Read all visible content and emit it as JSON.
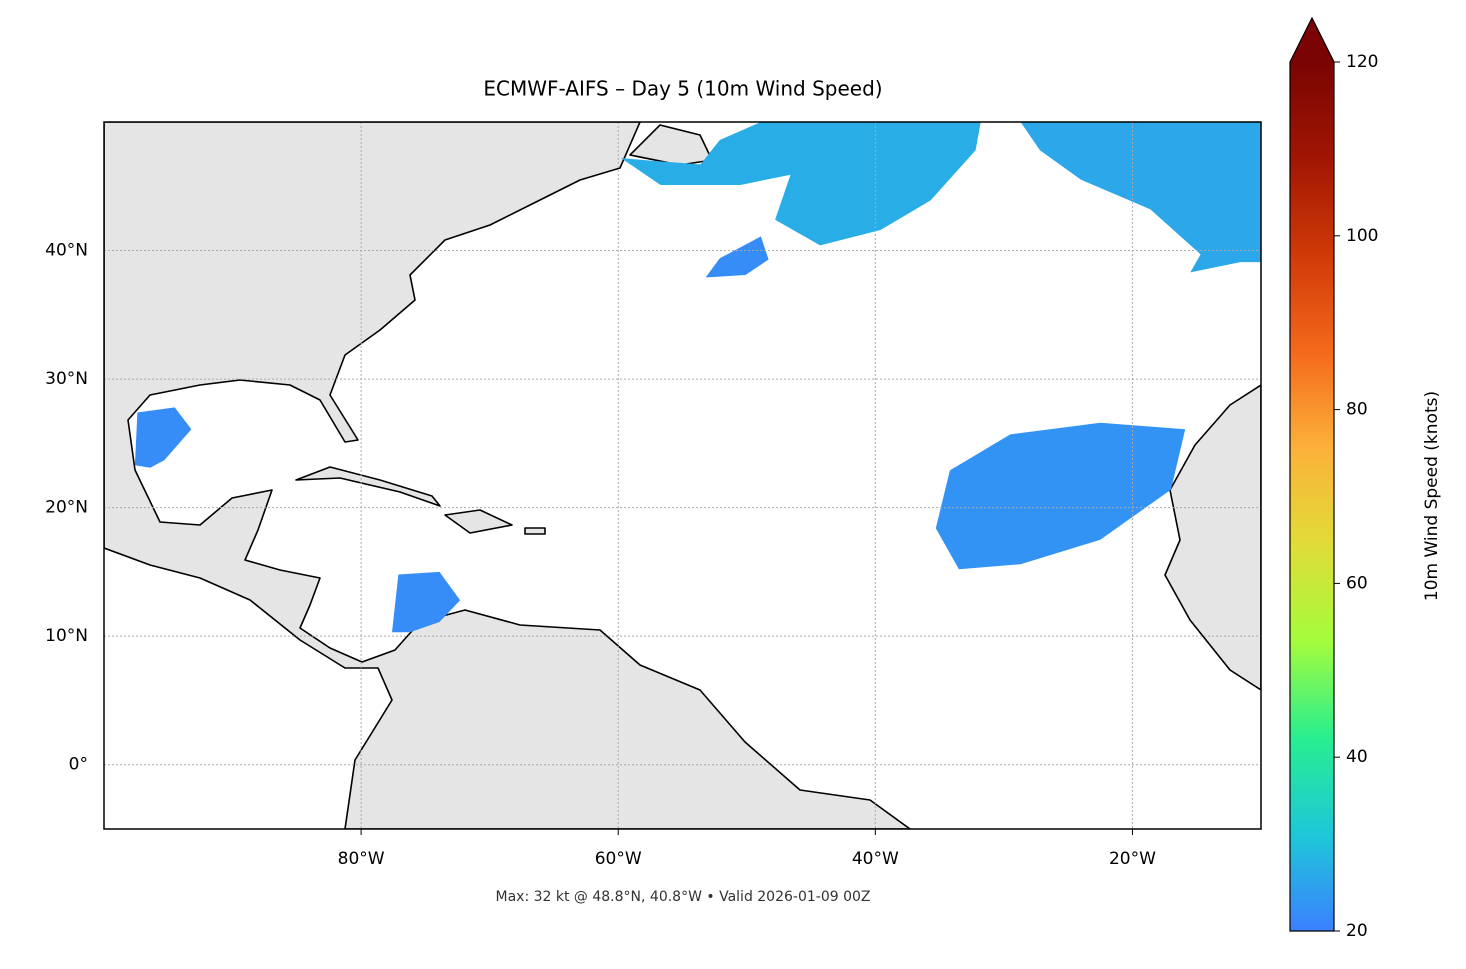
{
  "chart_data": {
    "type": "map",
    "title": "ECMWF-AIFS – Day 5 (10m Wind Speed)",
    "footer": "Max: 32 kt @ 48.8°N, 40.8°W • Valid 2026-01-09 00Z",
    "xlim": [
      -100,
      -10
    ],
    "ylim": [
      -5,
      50
    ],
    "xticks": [
      {
        "value": -80,
        "label": "80°W"
      },
      {
        "value": -60,
        "label": "60°W"
      },
      {
        "value": -40,
        "label": "40°W"
      },
      {
        "value": -20,
        "label": "20°W"
      }
    ],
    "yticks": [
      {
        "value": 0,
        "label": "0°"
      },
      {
        "value": 10,
        "label": "10°N"
      },
      {
        "value": 20,
        "label": "20°N"
      },
      {
        "value": 30,
        "label": "30°N"
      },
      {
        "value": 40,
        "label": "40°N"
      }
    ],
    "grid": true,
    "colorbar": {
      "label": "10m Wind Speed (knots)",
      "lim": [
        20,
        120
      ],
      "ticks": [
        20,
        40,
        60,
        80,
        100,
        120
      ],
      "extend": "max",
      "colors": [
        "#3b80ff",
        "#1ec8d8",
        "#28ee90",
        "#a4fc3c",
        "#e0dc37",
        "#fcb13a",
        "#f4691b",
        "#d03a08",
        "#a11603",
        "#7a0403"
      ]
    },
    "wind_areas": [
      {
        "value": 27,
        "polygon": [
          [
            -59.8,
            47.2
          ],
          [
            -56.7,
            45.1
          ],
          [
            -50.5,
            45.1
          ],
          [
            -46.6,
            45.9
          ],
          [
            -47.8,
            42.4
          ],
          [
            -44.3,
            40.4
          ],
          [
            -39.6,
            41.6
          ],
          [
            -35.7,
            43.9
          ],
          [
            -32.2,
            47.8
          ],
          [
            -31.8,
            50
          ],
          [
            -48.9,
            50
          ],
          [
            -52.1,
            48.6
          ],
          [
            -53.6,
            46.7
          ],
          [
            -57.5,
            47.0
          ]
        ]
      },
      {
        "value": 26,
        "polygon": [
          [
            -28.7,
            50
          ],
          [
            -10,
            50
          ],
          [
            -10,
            39.1
          ],
          [
            -11.6,
            39.1
          ],
          [
            -15.5,
            38.3
          ],
          [
            -14.7,
            39.7
          ],
          [
            -18.6,
            43.2
          ],
          [
            -24.0,
            45.5
          ],
          [
            -27.2,
            47.8
          ]
        ]
      },
      {
        "value": 22,
        "polygon": [
          [
            -53.2,
            37.9
          ],
          [
            -52.1,
            39.4
          ],
          [
            -48.9,
            41.1
          ],
          [
            -48.3,
            39.3
          ],
          [
            -50.1,
            38.1
          ]
        ]
      },
      {
        "value": 22,
        "polygon": [
          [
            -97.6,
            23.3
          ],
          [
            -97.4,
            27.4
          ],
          [
            -94.5,
            27.8
          ],
          [
            -93.2,
            26.1
          ],
          [
            -95.3,
            23.7
          ],
          [
            -96.4,
            23.1
          ]
        ]
      },
      {
        "value": 22,
        "polygon": [
          [
            -77.6,
            10.3
          ],
          [
            -77.1,
            14.8
          ],
          [
            -73.9,
            15.0
          ],
          [
            -72.3,
            12.8
          ],
          [
            -73.9,
            11.1
          ],
          [
            -76.2,
            10.3
          ]
        ]
      },
      {
        "value": 23,
        "polygon": [
          [
            -35.3,
            18.4
          ],
          [
            -34.2,
            22.9
          ],
          [
            -29.5,
            25.7
          ],
          [
            -22.5,
            26.6
          ],
          [
            -15.9,
            26.1
          ],
          [
            -17.0,
            21.4
          ],
          [
            -22.5,
            17.5
          ],
          [
            -28.7,
            15.6
          ],
          [
            -33.5,
            15.2
          ]
        ]
      }
    ]
  }
}
